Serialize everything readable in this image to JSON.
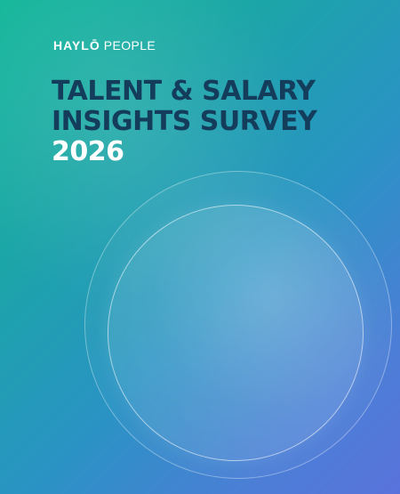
{
  "brand": {
    "name_bold": "HAYLŌ",
    "name_light": "PEOPLE"
  },
  "cover": {
    "title_line1": "TALENT & SALARY",
    "title_line2": "INSIGHTS SURVEY",
    "year": "2026"
  },
  "colors": {
    "gradient_start": "#14b79a",
    "gradient_end": "#5a73dc",
    "title_text": "#143d5c",
    "year_text": "#ffffff"
  }
}
